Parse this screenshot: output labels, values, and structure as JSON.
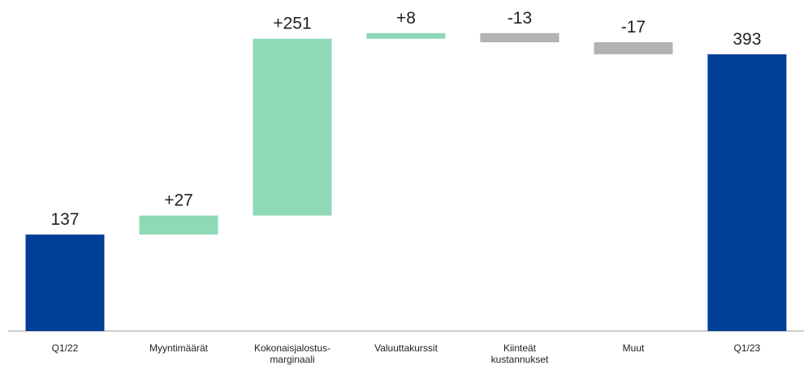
{
  "chart_data": {
    "type": "waterfall",
    "categories": [
      "Q1/22",
      "Myyntimäärät",
      "Kokonaisjalostus-\nmarginaali",
      "Valuuttakurssit",
      "Kiinteät\nkustannukset",
      "Muut",
      "Q1/23"
    ],
    "values": [
      137,
      27,
      251,
      8,
      -13,
      -17,
      393
    ],
    "value_labels": [
      "137",
      "+27",
      "+251",
      "+8",
      "-13",
      "-17",
      "393"
    ],
    "measure": [
      "total",
      "relative",
      "relative",
      "relative",
      "relative",
      "relative",
      "total"
    ],
    "colors": {
      "total": "#003f97",
      "increase": "#8fd9b6",
      "decrease": "#b2b2b2"
    },
    "ylim": [
      0,
      470
    ]
  }
}
